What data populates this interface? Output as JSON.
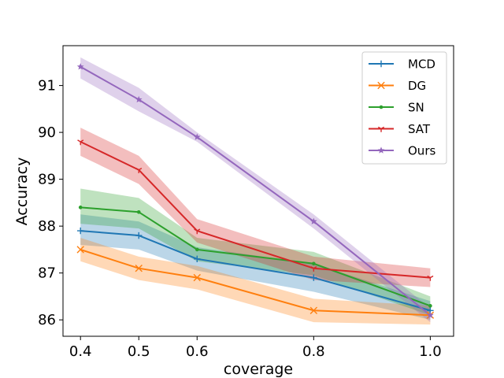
{
  "chart_data": {
    "type": "line",
    "title": "",
    "xlabel": "coverage",
    "ylabel": "Accuracy",
    "x": [
      0.4,
      0.5,
      0.6,
      0.8,
      1.0
    ],
    "xticks": [
      "0.4",
      "0.5",
      "0.6",
      "0.8",
      "1.0"
    ],
    "yticks": [
      "86",
      "87",
      "88",
      "89",
      "90",
      "91"
    ],
    "ytick_values": [
      86,
      87,
      88,
      89,
      90,
      91
    ],
    "xlim": [
      0.37,
      1.04
    ],
    "ylim": [
      85.65,
      91.85
    ],
    "grid": false,
    "legend_position": "top-right",
    "series": [
      {
        "name": "MCD",
        "color": "#1f77b4",
        "marker": "plus",
        "values": [
          87.9,
          87.8,
          87.3,
          86.9,
          86.2
        ],
        "band_lower": [
          87.6,
          87.5,
          87.05,
          86.6,
          86.0
        ],
        "band_upper": [
          88.25,
          88.1,
          87.55,
          87.2,
          86.4
        ]
      },
      {
        "name": "DG",
        "color": "#ff7f0e",
        "marker": "x",
        "values": [
          87.5,
          87.1,
          86.9,
          86.2,
          86.1
        ],
        "band_lower": [
          87.25,
          86.85,
          86.65,
          85.95,
          85.9
        ],
        "band_upper": [
          87.75,
          87.35,
          87.15,
          86.45,
          86.3
        ]
      },
      {
        "name": "SN",
        "color": "#2ca02c",
        "marker": "dot",
        "values": [
          88.4,
          88.3,
          87.5,
          87.2,
          86.3
        ],
        "band_lower": [
          88.05,
          87.95,
          87.25,
          86.95,
          86.1
        ],
        "band_upper": [
          88.8,
          88.6,
          87.75,
          87.45,
          86.5
        ]
      },
      {
        "name": "SAT",
        "color": "#d62728",
        "marker": "tri",
        "values": [
          89.8,
          89.2,
          87.9,
          87.1,
          86.9
        ],
        "band_lower": [
          89.5,
          88.9,
          87.65,
          86.85,
          86.7
        ],
        "band_upper": [
          90.1,
          89.5,
          88.15,
          87.35,
          87.1
        ]
      },
      {
        "name": "Ours",
        "color": "#9467bd",
        "marker": "star",
        "values": [
          91.4,
          90.7,
          89.9,
          88.1,
          86.1
        ],
        "band_lower": [
          91.15,
          90.45,
          89.8,
          87.95,
          85.95
        ],
        "band_upper": [
          91.6,
          90.95,
          90.0,
          88.25,
          86.25
        ]
      }
    ]
  }
}
